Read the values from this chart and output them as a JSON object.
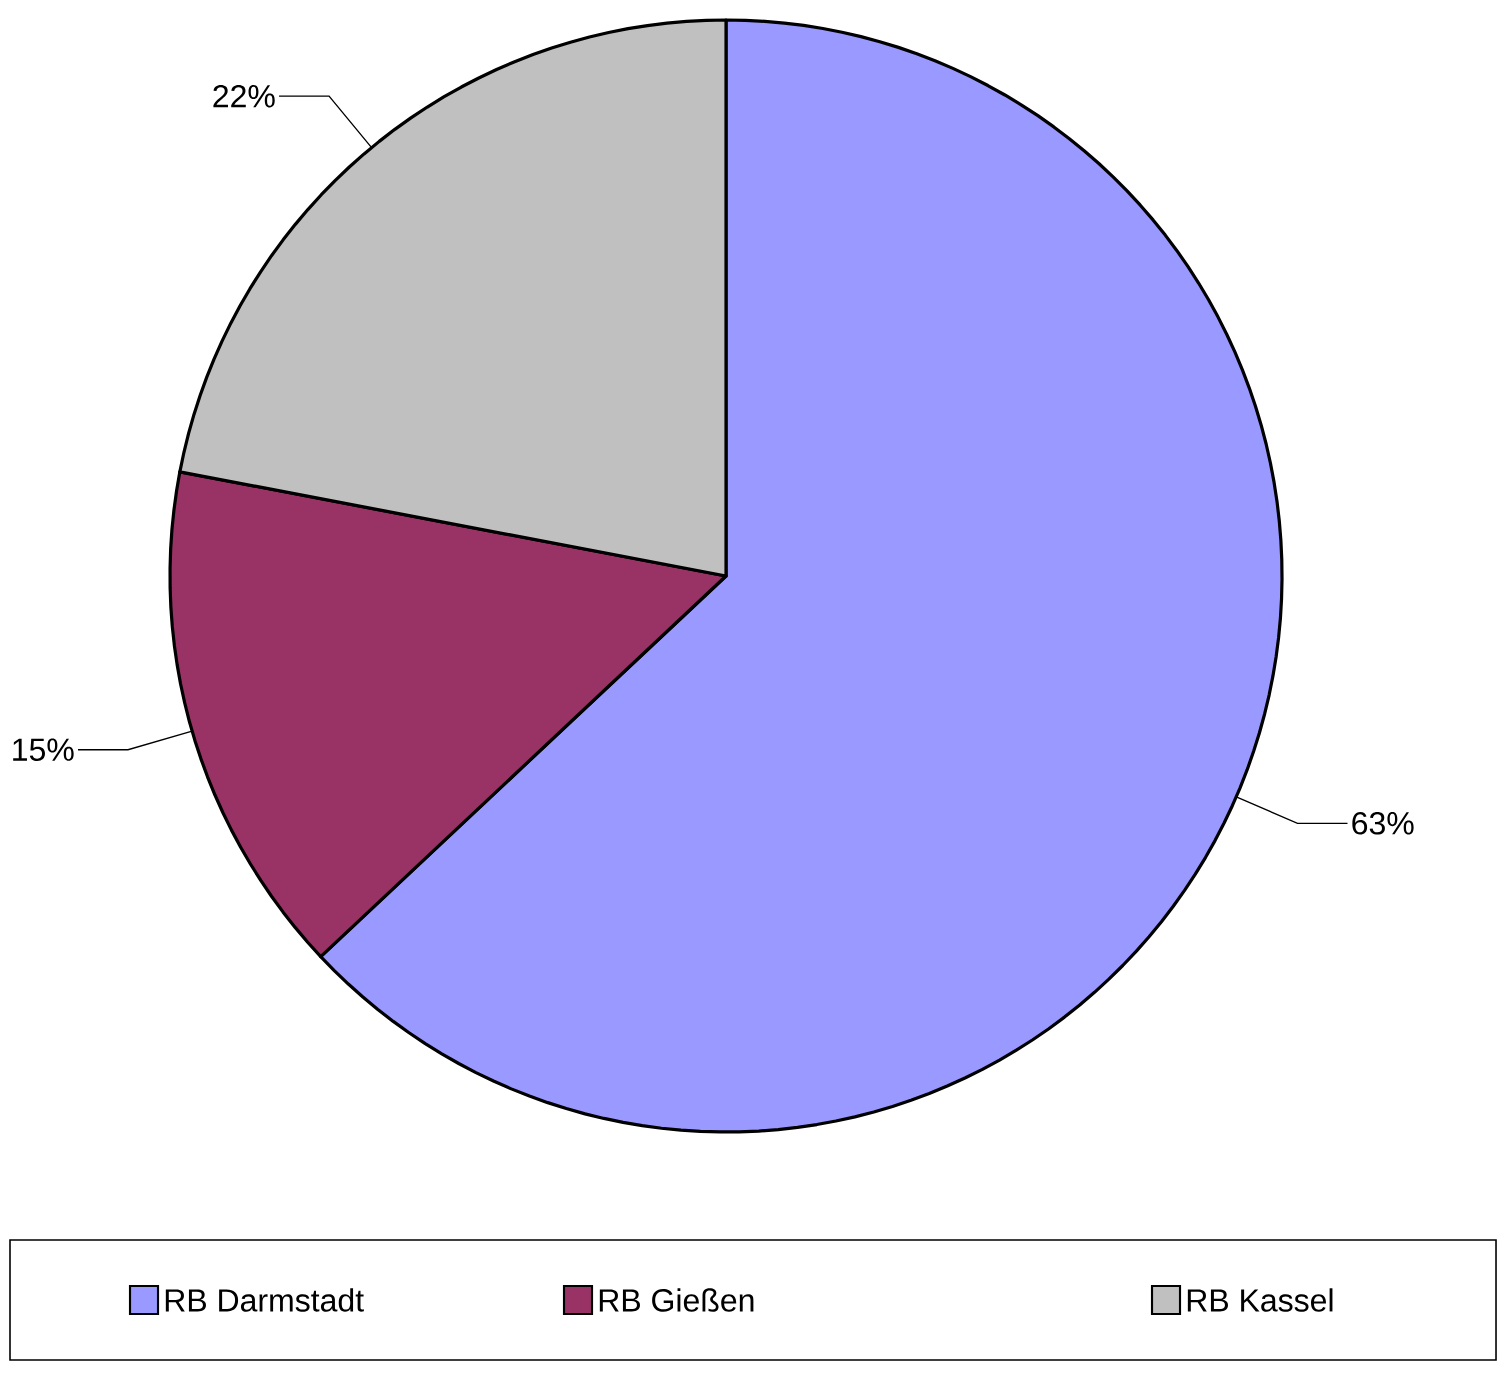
{
  "chart_data": {
    "type": "pie",
    "categories": [
      "RB  Darmstadt",
      "RB Gießen",
      "RB Kassel"
    ],
    "values": [
      63,
      15,
      22
    ],
    "value_labels": [
      "63%",
      "15%",
      "22%"
    ],
    "colors": [
      "#9999ff",
      "#993366",
      "#c0c0c0"
    ],
    "legend": "bottom"
  }
}
